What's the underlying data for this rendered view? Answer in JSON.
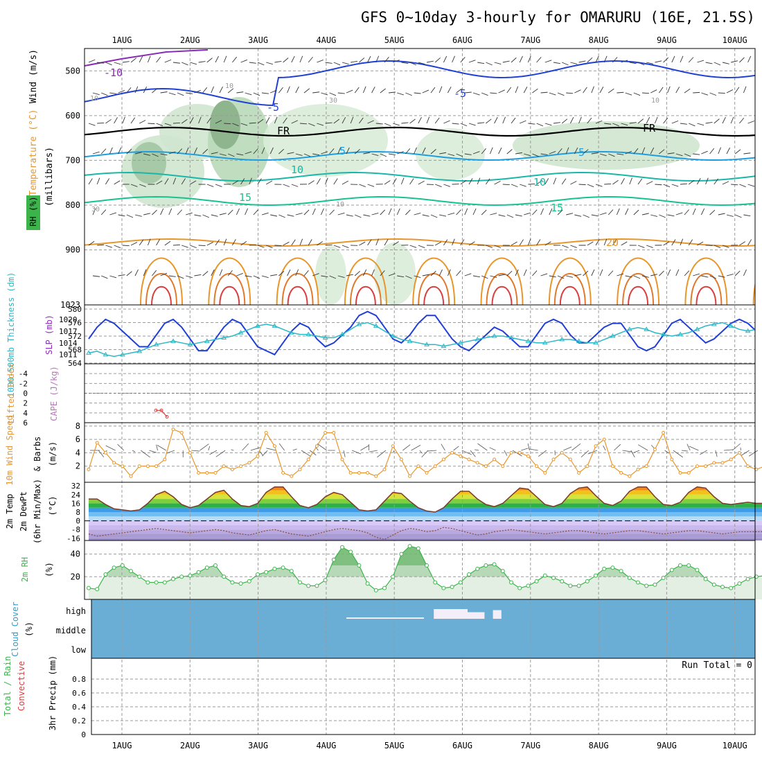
{
  "title": "GFS 0~10day 3-hourly for OMARURU (16E, 21.5S)",
  "days": [
    "1AUG",
    "2AUG",
    "3AUG",
    "4AUG",
    "5AUG",
    "6AUG",
    "7AUG",
    "8AUG",
    "9AUG",
    "10AUG"
  ],
  "colors": {
    "grid": "#9a9a9a",
    "cloud_bg": "#6aaed6",
    "rh_green": "#3cb44b",
    "slp_line": "#1f3fd6",
    "thickness_line": "#2ab7c6",
    "wind_line": "#e8962a",
    "cape_line": "#d94040"
  },
  "chart_data": [
    {
      "panel": "upper_air",
      "type": "contour",
      "ylabel_wind": "Wind (m/s)",
      "ylabel_temp": "Temperature (°C)",
      "ylabel_rh": "RH (%)",
      "ylabel_units": "(millibars)",
      "yticks": [
        "500",
        "600",
        "700",
        "800",
        "900",
        "1023"
      ],
      "ylim": [
        450,
        1023
      ],
      "temperature_contours": [
        {
          "label": "-10",
          "level": -10
        },
        {
          "label": "-5",
          "level": -5
        },
        {
          "label": "FR",
          "level": 0
        },
        {
          "label": "5",
          "level": 5
        },
        {
          "label": "10",
          "level": 10
        },
        {
          "label": "15",
          "level": 15
        },
        {
          "label": "20",
          "level": 20
        }
      ],
      "rh_labels": [
        "10",
        "30",
        "10",
        "30",
        "10",
        "10"
      ]
    },
    {
      "panel": "slp_thickness",
      "type": "line",
      "ylabel_left": "1000-500mb Thickness (dm)",
      "ylabel_right": "SLP (mb)",
      "left_ticks": [
        "580",
        "576",
        "572",
        "568",
        "564"
      ],
      "right_ticks": [
        "1020",
        "1017",
        "1014",
        "1011"
      ],
      "series": [
        {
          "name": "SLP (mb)",
          "values": [
            1015,
            1018,
            1020,
            1019,
            1017,
            1015,
            1013,
            1013,
            1016,
            1019,
            1020,
            1018,
            1015,
            1012,
            1012,
            1015,
            1018,
            1020,
            1019,
            1016,
            1013,
            1012,
            1011,
            1014,
            1017,
            1019,
            1018,
            1015,
            1013,
            1014,
            1016,
            1018,
            1021,
            1022,
            1021,
            1018,
            1015,
            1014,
            1016,
            1019,
            1021,
            1021,
            1018,
            1015,
            1013,
            1012,
            1014,
            1016,
            1018,
            1017,
            1015,
            1013,
            1013,
            1016,
            1019,
            1020,
            1019,
            1016,
            1014,
            1014,
            1016,
            1018,
            1019,
            1019,
            1016,
            1013,
            1012,
            1013,
            1016,
            1019,
            1020,
            1018,
            1016,
            1014,
            1015,
            1017,
            1019,
            1020,
            1019,
            1017,
            1017
          ]
        },
        {
          "name": "Thickness (dm)",
          "values": [
            567,
            567.5,
            566.5,
            566,
            566.5,
            567,
            567.5,
            568.5,
            569.5,
            570,
            570.5,
            570,
            569.5,
            570,
            570.5,
            571,
            571.5,
            572,
            573,
            574,
            575,
            575.5,
            575,
            574,
            573,
            572.5,
            572.5,
            572,
            571.5,
            571.5,
            572.5,
            574,
            575.5,
            576,
            575,
            573.5,
            572,
            571,
            570.5,
            570,
            569.5,
            569.5,
            569,
            569.5,
            570,
            570.5,
            571,
            571.5,
            572,
            572,
            571.5,
            571,
            570.5,
            570,
            570,
            570.5,
            571,
            571,
            570.5,
            570,
            570,
            571,
            572,
            573,
            574,
            574.5,
            574,
            573,
            572.5,
            572,
            572.5,
            573,
            574,
            575,
            575.5,
            576,
            575,
            574,
            573.5,
            574,
            575
          ]
        }
      ]
    },
    {
      "panel": "cape_li",
      "type": "line",
      "ylabel_left": "Lifted Index",
      "ylabel_right": "CAPE (J/kg)",
      "yticks": [
        "-4",
        "-2",
        "0",
        "2",
        "4",
        "6"
      ],
      "series": [
        {
          "name": "Lifted Index",
          "values": [
            3.5,
            3.5,
            4.8
          ]
        }
      ]
    },
    {
      "panel": "wind10m",
      "type": "line",
      "ylabel_left": "10m Wind Speed",
      "ylabel_right": "& Barbs",
      "ylabel_units": "(m/s)",
      "yticks": [
        "8",
        "6",
        "4",
        "2"
      ],
      "ylim": [
        0,
        8
      ],
      "series": [
        {
          "name": "10m Wind Speed (m/s)",
          "values": [
            1.5,
            5.5,
            4,
            2.5,
            2,
            0.5,
            2,
            2,
            2,
            3,
            7.5,
            7,
            4,
            1,
            1,
            1,
            2,
            1.5,
            2,
            2.5,
            3.5,
            7,
            5,
            1,
            0.5,
            1.5,
            3,
            5,
            7,
            7,
            3,
            1,
            1,
            1,
            0.5,
            1.5,
            5,
            3,
            0.5,
            2,
            1,
            2,
            3,
            4,
            3.5,
            3,
            2.5,
            2,
            3,
            2,
            4,
            4,
            3.5,
            2,
            1,
            3,
            4,
            3,
            1,
            2,
            5,
            6,
            2,
            1,
            0.5,
            1.5,
            2,
            4.5,
            7,
            3,
            1,
            1,
            2,
            2,
            2.5,
            2.5,
            3,
            4,
            2,
            1.5,
            2,
            3,
            2
          ]
        }
      ]
    },
    {
      "panel": "temp2m",
      "type": "area",
      "ylabel_left": "2m Temp",
      "ylabel_mid": "2m DewPt",
      "ylabel_right": "(6hr Min/Max)",
      "ylabel_units": "(°C)",
      "yticks": [
        "32",
        "24",
        "16",
        "8",
        "0",
        "-8",
        "-16"
      ],
      "ylim": [
        -18,
        34
      ],
      "series": [
        {
          "name": "2m Temp (°C)",
          "values": [
            20,
            20,
            15,
            11,
            10,
            9,
            10,
            16,
            24,
            27,
            22,
            15,
            12,
            14,
            20,
            26,
            28,
            20,
            14,
            13,
            16,
            26,
            31,
            31,
            22,
            14,
            12,
            15,
            22,
            26,
            24,
            17,
            10,
            9,
            10,
            18,
            26,
            25,
            18,
            12,
            9,
            8,
            12,
            20,
            27,
            27,
            20,
            15,
            13,
            16,
            23,
            30,
            29,
            22,
            15,
            13,
            16,
            25,
            30,
            31,
            23,
            16,
            14,
            18,
            27,
            31,
            31,
            22,
            15,
            14,
            17,
            26,
            31,
            30,
            22,
            16,
            15,
            16,
            17,
            16,
            16
          ]
        },
        {
          "name": "2m DewPt (°C)",
          "values": [
            -12,
            -14,
            -13,
            -12,
            -11,
            -10,
            -9,
            -8,
            -7,
            -8,
            -9,
            -10,
            -11,
            -10,
            -9,
            -8,
            -9,
            -11,
            -12,
            -13,
            -11,
            -9,
            -8,
            -10,
            -12,
            -13,
            -14,
            -12,
            -10,
            -8,
            -7,
            -8,
            -9,
            -11,
            -15,
            -17,
            -13,
            -9,
            -7,
            -8,
            -10,
            -9,
            -6,
            -7,
            -9,
            -11,
            -13,
            -12,
            -10,
            -9,
            -8,
            -9,
            -10,
            -11,
            -12,
            -11,
            -10,
            -9,
            -9,
            -10,
            -11,
            -12,
            -11,
            -10,
            -9,
            -9,
            -10,
            -11,
            -12,
            -11,
            -10,
            -9,
            -9,
            -10,
            -11,
            -12,
            -11,
            -10,
            -10,
            -10,
            -10
          ]
        }
      ]
    },
    {
      "panel": "rh2m",
      "type": "area",
      "ylabel_left": "2m RH",
      "ylabel_units": "(%)",
      "yticks": [
        "40",
        "20"
      ],
      "ylim": [
        0,
        50
      ],
      "series": [
        {
          "name": "2m RH (%)",
          "values": [
            10,
            9,
            22,
            28,
            30,
            25,
            20,
            15,
            15,
            15,
            18,
            20,
            21,
            24,
            28,
            30,
            20,
            15,
            14,
            16,
            22,
            24,
            27,
            28,
            25,
            15,
            12,
            12,
            17,
            35,
            46,
            42,
            30,
            14,
            8,
            10,
            20,
            40,
            47,
            45,
            30,
            15,
            10,
            11,
            15,
            22,
            27,
            30,
            31,
            25,
            15,
            10,
            12,
            16,
            21,
            19,
            16,
            12,
            12,
            16,
            21,
            27,
            28,
            25,
            19,
            15,
            12,
            13,
            19,
            26,
            30,
            30,
            26,
            18,
            13,
            11,
            10,
            14,
            18,
            20,
            21
          ]
        }
      ]
    },
    {
      "panel": "cloud_cover",
      "type": "heatmap",
      "ylabel_left": "Cloud Cover",
      "ylabel_units": "(%)",
      "levels": [
        "high",
        "middle",
        "low"
      ],
      "high_cloud_segments": [
        {
          "start_index": 31,
          "end_index": 35,
          "coverage": 40
        },
        {
          "start_index": 35,
          "end_index": 37,
          "coverage": 25
        },
        {
          "start_index": 38,
          "end_index": 39,
          "coverage": 35
        }
      ]
    },
    {
      "panel": "precip",
      "type": "bar",
      "ylabel_left": "Total / Rain",
      "ylabel_mid": "Convective",
      "ylabel_right": "3hr Precip (mm)",
      "yticks": [
        "0.8",
        "0.6",
        "0.4",
        "0.2",
        "0"
      ],
      "ylim": [
        0,
        1
      ],
      "run_total_label": "Run Total = 0",
      "values": []
    }
  ]
}
